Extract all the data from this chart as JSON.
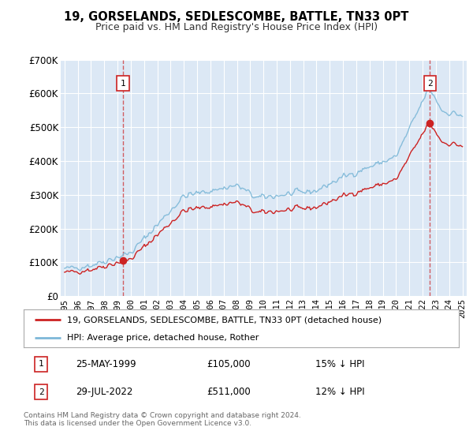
{
  "title": "19, GORSELANDS, SEDLESCOMBE, BATTLE, TN33 0PT",
  "subtitle": "Price paid vs. HM Land Registry's House Price Index (HPI)",
  "legend_line1": "19, GORSELANDS, SEDLESCOMBE, BATTLE, TN33 0PT (detached house)",
  "legend_line2": "HPI: Average price, detached house, Rother",
  "annotation1_date": "25-MAY-1999",
  "annotation1_price": "£105,000",
  "annotation1_hpi": "15% ↓ HPI",
  "annotation2_date": "29-JUL-2022",
  "annotation2_price": "£511,000",
  "annotation2_hpi": "12% ↓ HPI",
  "footer": "Contains HM Land Registry data © Crown copyright and database right 2024.\nThis data is licensed under the Open Government Licence v3.0.",
  "ylim": [
    0,
    700000
  ],
  "yticks": [
    0,
    100000,
    200000,
    300000,
    400000,
    500000,
    600000,
    700000
  ],
  "ytick_labels": [
    "£0",
    "£100K",
    "£200K",
    "£300K",
    "£400K",
    "£500K",
    "£600K",
    "£700K"
  ],
  "hpi_color": "#7db8d8",
  "price_color": "#cc2222",
  "dashed_line_color": "#cc2222",
  "bg_color": "#ffffff",
  "plot_bg_color": "#dce8f5",
  "grid_color": "#ffffff",
  "marker1_x": 1999.4,
  "marker1_y": 105000,
  "marker2_x": 2022.55,
  "marker2_y": 511000,
  "xmin": 1994.7,
  "xmax": 2025.3
}
